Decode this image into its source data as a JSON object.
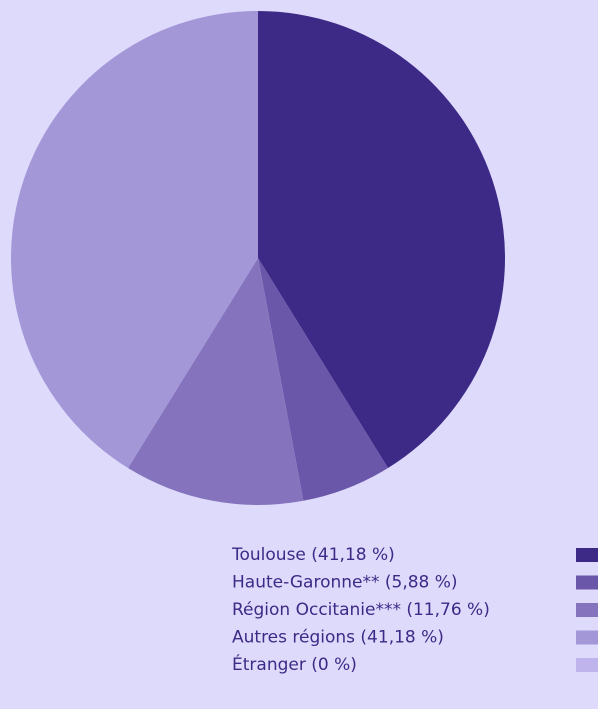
{
  "chart_data": {
    "type": "pie",
    "categories": [
      "Toulouse (41,18 %)",
      "Haute-Garonne** (5,88 %)",
      "Région Occitanie*** (11,76 %)",
      "Autres régions (41,18 %)",
      "Étranger (0 %)"
    ],
    "values": [
      41.18,
      5.88,
      11.76,
      41.18,
      0
    ],
    "colors": [
      "#3d2a87",
      "#6a57a9",
      "#8574bd",
      "#a397d8",
      "#bfb5ec"
    ],
    "legend": "bottom-right"
  }
}
